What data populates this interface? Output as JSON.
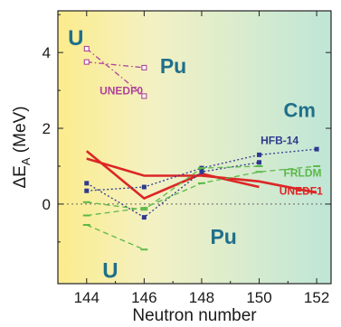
{
  "chart_data": {
    "type": "line",
    "xlabel": "Neutron number",
    "ylabel_main": "ΔE",
    "ylabel_sub": "A",
    "ylabel_unit": " (MeV)",
    "xlim": [
      143,
      152.5
    ],
    "ylim": [
      -2.1,
      5.1
    ],
    "xticks": [
      "144",
      "146",
      "148",
      "150",
      "152"
    ],
    "yticks": [
      "0",
      "2",
      "4"
    ],
    "region_labels": [
      {
        "text": "U",
        "x": 143.35,
        "y": 4.2,
        "size": 24
      },
      {
        "text": "Pu",
        "x": 146.55,
        "y": 3.45,
        "size": 23
      },
      {
        "text": "Cm",
        "x": 150.85,
        "y": 2.3,
        "size": 22
      },
      {
        "text": "Pu",
        "x": 148.3,
        "y": -1.05,
        "size": 23
      },
      {
        "text": "U",
        "x": 144.55,
        "y": -1.95,
        "size": 24
      }
    ],
    "model_labels": [
      {
        "text": "UNEDF0",
        "x": 144.45,
        "y": 2.9,
        "color": "#b0449a"
      },
      {
        "text": "HFB-14",
        "x": 150.05,
        "y": 1.58,
        "color": "#2e3a8f"
      },
      {
        "text": "FRLDM",
        "x": 150.85,
        "y": 0.72,
        "color": "#5cb84a"
      },
      {
        "text": "UNEDF1",
        "x": 150.7,
        "y": 0.25,
        "color": "#dc2626"
      }
    ],
    "series": [
      {
        "model": "UNEDF0",
        "color": "#b0449a",
        "style": "dashdot",
        "marker": "square-open",
        "x": [
          144,
          146
        ],
        "y": [
          4.1,
          2.85
        ]
      },
      {
        "model": "UNEDF0",
        "color": "#b0449a",
        "style": "dashdot",
        "marker": "square-open",
        "x": [
          144,
          146
        ],
        "y": [
          3.75,
          3.6
        ]
      },
      {
        "model": "UNEDF1",
        "color": "#dc2626",
        "style": "solid",
        "marker": "none",
        "x": [
          144,
          146,
          148,
          150
        ],
        "y": [
          1.4,
          0.15,
          0.8,
          0.45
        ]
      },
      {
        "model": "UNEDF1",
        "color": "#dc2626",
        "style": "solid",
        "marker": "none",
        "x": [
          144,
          146,
          148,
          150,
          152
        ],
        "y": [
          1.2,
          0.75,
          0.75,
          0.6,
          0.3
        ]
      },
      {
        "model": "HFB-14",
        "color": "#2e3a8f",
        "style": "dotted",
        "marker": "square-filled",
        "x": [
          144,
          146,
          148,
          150,
          152
        ],
        "y": [
          0.35,
          0.45,
          0.95,
          1.3,
          1.45
        ]
      },
      {
        "model": "HFB-14",
        "color": "#2e3a8f",
        "style": "dotted",
        "marker": "square-filled",
        "x": [
          144,
          146,
          148,
          150
        ],
        "y": [
          0.55,
          -0.35,
          0.85,
          1.1
        ]
      },
      {
        "model": "FRLDM",
        "color": "#5cb84a",
        "style": "dashed",
        "marker": "dash",
        "x": [
          144,
          146,
          148,
          150,
          152
        ],
        "y": [
          -0.3,
          -0.1,
          0.55,
          0.85,
          1.0
        ]
      },
      {
        "model": "FRLDM",
        "color": "#5cb84a",
        "style": "dashed",
        "marker": "dash",
        "x": [
          144,
          146,
          148,
          150
        ],
        "y": [
          0.05,
          -0.15,
          0.95,
          1.0
        ]
      },
      {
        "model": "FRLDM",
        "color": "#5cb84a",
        "style": "dashed",
        "marker": "dash",
        "x": [
          144,
          146
        ],
        "y": [
          -0.55,
          -1.2
        ]
      }
    ],
    "zero_line": true,
    "grid": false,
    "background": {
      "left": "#fcec8c",
      "right": "#bfe6d7"
    }
  }
}
